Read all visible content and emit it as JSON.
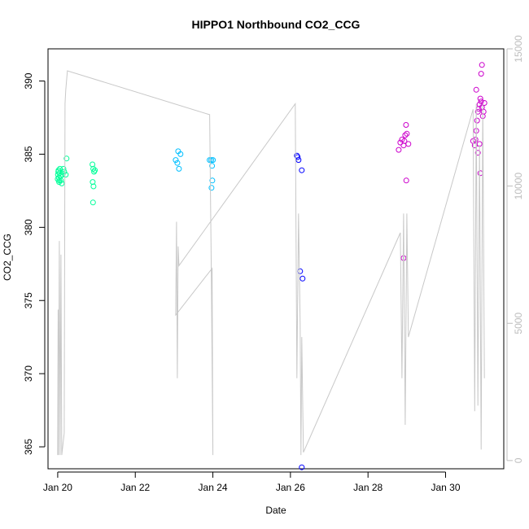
{
  "chart_data": {
    "type": "scatter",
    "title": "HIPPO1 Northbound CO2_CCG",
    "xlabel": "Date",
    "ylabel": "CO2_CCG",
    "x_axis": {
      "type": "date",
      "range": [
        "2009-01-19T18:00",
        "2009-01-31T12:00"
      ],
      "ticks": [
        {
          "value": "2009-01-20T00:00",
          "label": "Jan 20"
        },
        {
          "value": "2009-01-22T00:00",
          "label": "Jan 22"
        },
        {
          "value": "2009-01-24T00:00",
          "label": "Jan 24"
        },
        {
          "value": "2009-01-26T00:00",
          "label": "Jan 26"
        },
        {
          "value": "2009-01-28T00:00",
          "label": "Jan 28"
        },
        {
          "value": "2009-01-30T00:00",
          "label": "Jan 30"
        }
      ]
    },
    "y_axis_left": {
      "range": [
        363.5,
        392.2
      ],
      "ticks": [
        365,
        370,
        375,
        380,
        385,
        390
      ]
    },
    "y_axis_right": {
      "range": [
        -300,
        15000
      ],
      "ticks": [
        0,
        5000,
        10000,
        15000
      ],
      "color": "#bdbdbd"
    },
    "grid": false,
    "series": [
      {
        "color": "#00ff99",
        "marker": "open-circle",
        "axis": "left",
        "points": [
          [
            "2009-01-20T00:00",
            383.3
          ],
          [
            "2009-01-20T00:10",
            383.6
          ],
          [
            "2009-01-20T00:20",
            383.8
          ],
          [
            "2009-01-20T00:30",
            383.9
          ],
          [
            "2009-01-20T00:40",
            383.4
          ],
          [
            "2009-01-20T00:50",
            383.1
          ],
          [
            "2009-01-20T01:00",
            383.2
          ],
          [
            "2009-01-20T01:10",
            383.7
          ],
          [
            "2009-01-20T01:20",
            384.0
          ],
          [
            "2009-01-20T01:40",
            383.5
          ],
          [
            "2009-01-20T02:00",
            383.2
          ],
          [
            "2009-01-20T02:30",
            383.0
          ],
          [
            "2009-01-20T03:00",
            383.6
          ],
          [
            "2009-01-20T03:30",
            384.0
          ],
          [
            "2009-01-20T04:00",
            383.8
          ],
          [
            "2009-01-20T05:00",
            383.6
          ],
          [
            "2009-01-20T05:30",
            384.7
          ],
          [
            "2009-01-20T21:30",
            384.3
          ],
          [
            "2009-01-20T22:00",
            384.0
          ],
          [
            "2009-01-20T22:30",
            383.8
          ],
          [
            "2009-01-20T23:00",
            383.9
          ],
          [
            "2009-01-20T21:40",
            383.1
          ],
          [
            "2009-01-20T22:10",
            382.8
          ],
          [
            "2009-01-20T21:50",
            381.7
          ]
        ]
      },
      {
        "color": "#00bfff",
        "marker": "open-circle",
        "axis": "left",
        "points": [
          [
            "2009-01-23T01:00",
            384.6
          ],
          [
            "2009-01-23T02:00",
            384.4
          ],
          [
            "2009-01-23T02:30",
            385.2
          ],
          [
            "2009-01-23T03:00",
            384.0
          ],
          [
            "2009-01-23T04:00",
            385.0
          ],
          [
            "2009-01-23T22:00",
            384.6
          ],
          [
            "2009-01-23T23:00",
            384.6
          ],
          [
            "2009-01-23T23:30",
            384.2
          ],
          [
            "2009-01-24T00:00",
            384.6
          ],
          [
            "2009-01-23T23:40",
            383.2
          ],
          [
            "2009-01-23T23:10",
            382.7
          ]
        ]
      },
      {
        "color": "#0000ff",
        "marker": "open-circle",
        "axis": "left",
        "points": [
          [
            "2009-01-26T04:00",
            384.9
          ],
          [
            "2009-01-26T04:30",
            384.8
          ],
          [
            "2009-01-26T05:00",
            384.6
          ],
          [
            "2009-01-26T07:00",
            383.9
          ],
          [
            "2009-01-26T06:00",
            377.0
          ],
          [
            "2009-01-26T07:30",
            376.5
          ],
          [
            "2009-01-26T07:00",
            363.6
          ]
        ]
      },
      {
        "color": "#cc00cc",
        "marker": "open-circle",
        "axis": "left",
        "points": [
          [
            "2009-01-28T19:00",
            385.3
          ],
          [
            "2009-01-28T20:00",
            385.8
          ],
          [
            "2009-01-28T21:00",
            386.0
          ],
          [
            "2009-01-28T22:00",
            385.6
          ],
          [
            "2009-01-28T23:00",
            386.3
          ],
          [
            "2009-01-29T00:00",
            386.4
          ],
          [
            "2009-01-28T23:30",
            387.0
          ],
          [
            "2009-01-29T01:00",
            385.7
          ],
          [
            "2009-01-28T22:30",
            385.9
          ],
          [
            "2009-01-28T23:40",
            383.2
          ],
          [
            "2009-01-28T22:00",
            377.9
          ],
          [
            "2009-01-30T17:00",
            385.9
          ],
          [
            "2009-01-30T18:00",
            385.6
          ],
          [
            "2009-01-30T18:30",
            386.0
          ],
          [
            "2009-01-30T19:00",
            386.6
          ],
          [
            "2009-01-30T19:30",
            387.3
          ],
          [
            "2009-01-30T20:00",
            387.9
          ],
          [
            "2009-01-30T20:30",
            388.1
          ],
          [
            "2009-01-30T21:00",
            388.4
          ],
          [
            "2009-01-30T21:30",
            388.8
          ],
          [
            "2009-01-30T22:00",
            388.6
          ],
          [
            "2009-01-30T22:30",
            388.2
          ],
          [
            "2009-01-30T23:00",
            387.6
          ],
          [
            "2009-01-30T23:30",
            387.9
          ],
          [
            "2009-01-31T00:00",
            388.5
          ],
          [
            "2009-01-30T19:00",
            389.4
          ],
          [
            "2009-01-30T22:00",
            390.5
          ],
          [
            "2009-01-30T22:30",
            391.1
          ],
          [
            "2009-01-30T20:00",
            385.1
          ],
          [
            "2009-01-30T21:00",
            385.7
          ],
          [
            "2009-01-30T21:30",
            383.7
          ]
        ]
      },
      {
        "color": "#c8c8c8",
        "marker": "line",
        "axis": "right",
        "points": [
          [
            "2009-01-20T00:00",
            200
          ],
          [
            "2009-01-20T00:15",
            5500
          ],
          [
            "2009-01-20T00:30",
            200
          ],
          [
            "2009-01-20T01:00",
            8000
          ],
          [
            "2009-01-20T01:30",
            200
          ],
          [
            "2009-01-20T02:00",
            7500
          ],
          [
            "2009-01-20T02:30",
            200
          ],
          [
            "2009-01-20T04:00",
            1000
          ],
          [
            "2009-01-20T04:30",
            13000
          ],
          [
            "2009-01-20T05:00",
            13500
          ],
          [
            "2009-01-20T06:00",
            14200
          ],
          [
            "2009-01-23T22:00",
            12600
          ],
          [
            "2009-01-23T23:00",
            7000
          ],
          [
            "2009-01-24T00:00",
            200
          ],
          [
            "2009-01-23T23:30",
            7000
          ],
          [
            "2009-01-23T01:00",
            5300
          ],
          [
            "2009-01-23T01:30",
            8700
          ],
          [
            "2009-01-23T02:00",
            3000
          ],
          [
            "2009-01-23T02:30",
            7800
          ],
          [
            "2009-01-23T03:00",
            7100
          ],
          [
            "2009-01-26T03:00",
            13000
          ],
          [
            "2009-01-26T04:00",
            3000
          ],
          [
            "2009-01-26T05:00",
            9000
          ],
          [
            "2009-01-26T06:00",
            5000
          ],
          [
            "2009-01-26T06:30",
            200
          ],
          [
            "2009-01-26T07:00",
            4500
          ],
          [
            "2009-01-26T08:00",
            300
          ],
          [
            "2009-01-28T20:00",
            8300
          ],
          [
            "2009-01-28T21:00",
            3000
          ],
          [
            "2009-01-28T22:00",
            9000
          ],
          [
            "2009-01-28T23:00",
            1300
          ],
          [
            "2009-01-29T00:00",
            9000
          ],
          [
            "2009-01-29T01:00",
            4500
          ],
          [
            "2009-01-30T17:00",
            12800
          ],
          [
            "2009-01-30T18:00",
            1800
          ],
          [
            "2009-01-30T19:00",
            13000
          ],
          [
            "2009-01-30T20:00",
            2000
          ],
          [
            "2009-01-30T21:00",
            11500
          ],
          [
            "2009-01-30T22:00",
            400
          ],
          [
            "2009-01-30T23:00",
            13000
          ],
          [
            "2009-01-31T00:00",
            3000
          ]
        ]
      }
    ]
  }
}
